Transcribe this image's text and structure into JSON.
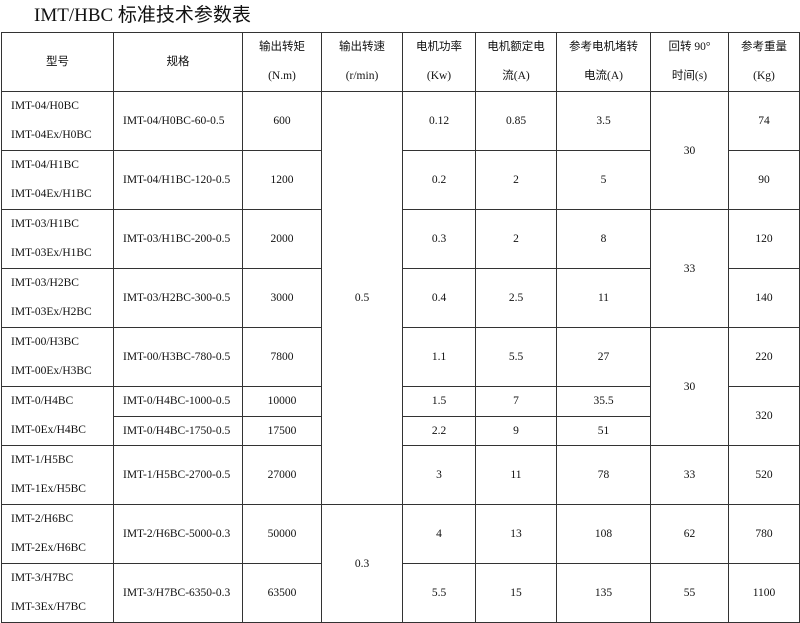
{
  "title": "IMT/HBC 标准技术参数表",
  "headers": {
    "model": "型号",
    "spec": "规格",
    "torque": [
      "输出转矩",
      "(N.m)"
    ],
    "speed": [
      "输出转速",
      "(r/min)"
    ],
    "power": [
      "电机功率",
      "(Kw)"
    ],
    "current": [
      "电机额定电",
      "流(A)"
    ],
    "stall": [
      "参考电机堵转",
      "电流(A)"
    ],
    "rotation": [
      "回转 90°",
      "时间(s)"
    ],
    "weight": [
      "参考重量",
      "(Kg)"
    ]
  },
  "models": [
    [
      "IMT-04/H0BC",
      "IMT-04Ex/H0BC"
    ],
    [
      "IMT-04/H1BC",
      "IMT-04Ex/H1BC"
    ],
    [
      "IMT-03/H1BC",
      "IMT-03Ex/H1BC"
    ],
    [
      "IMT-03/H2BC",
      "IMT-03Ex/H2BC"
    ],
    [
      "IMT-00/H3BC",
      "IMT-00Ex/H3BC"
    ],
    [
      "IMT-0/H4BC",
      "IMT-0Ex/H4BC"
    ],
    [
      "IMT-1/H5BC",
      "IMT-1Ex/H5BC"
    ],
    [
      "IMT-2/H6BC",
      "IMT-2Ex/H6BC"
    ],
    [
      "IMT-3/H7BC",
      "IMT-3Ex/H7BC"
    ]
  ],
  "model_row_spans": [
    1,
    1,
    1,
    1,
    1,
    2,
    1,
    1,
    1
  ],
  "rows": [
    {
      "spec": "IMT-04/H0BC-60-0.5",
      "torque": "600",
      "power": "0.12",
      "current": "0.85",
      "stall": "3.5"
    },
    {
      "spec": "IMT-04/H1BC-120-0.5",
      "torque": "1200",
      "power": "0.2",
      "current": "2",
      "stall": "5"
    },
    {
      "spec": "IMT-03/H1BC-200-0.5",
      "torque": "2000",
      "power": "0.3",
      "current": "2",
      "stall": "8"
    },
    {
      "spec": "IMT-03/H2BC-300-0.5",
      "torque": "3000",
      "power": "0.4",
      "current": "2.5",
      "stall": "11"
    },
    {
      "spec": "IMT-00/H3BC-780-0.5",
      "torque": "7800",
      "power": "1.1",
      "current": "5.5",
      "stall": "27"
    },
    {
      "spec": "IMT-0/H4BC-1000-0.5",
      "torque": "10000",
      "power": "1.5",
      "current": "7",
      "stall": "35.5"
    },
    {
      "spec": "IMT-0/H4BC-1750-0.5",
      "torque": "17500",
      "power": "2.2",
      "current": "9",
      "stall": "51"
    },
    {
      "spec": "IMT-1/H5BC-2700-0.5",
      "torque": "27000",
      "power": "3",
      "current": "11",
      "stall": "78"
    },
    {
      "spec": "IMT-2/H6BC-5000-0.3",
      "torque": "50000",
      "power": "4",
      "current": "13",
      "stall": "108"
    },
    {
      "spec": "IMT-3/H7BC-6350-0.3",
      "torque": "63500",
      "power": "5.5",
      "current": "15",
      "stall": "135"
    }
  ],
  "speed_groups": [
    {
      "value": "0.5",
      "rows": 8
    },
    {
      "value": "0.3",
      "rows": 2
    }
  ],
  "rotation_groups": [
    {
      "value": "30",
      "rows": 2
    },
    {
      "value": "33",
      "rows": 2
    },
    {
      "value": "30",
      "rows": 3
    },
    {
      "value": "33",
      "rows": 1
    },
    {
      "value": "62",
      "rows": 1
    },
    {
      "value": "55",
      "rows": 1
    }
  ],
  "weight_groups": [
    {
      "value": "74",
      "rows": 1
    },
    {
      "value": "90",
      "rows": 1
    },
    {
      "value": "120",
      "rows": 1
    },
    {
      "value": "140",
      "rows": 1
    },
    {
      "value": "220",
      "rows": 1
    },
    {
      "value": "320",
      "rows": 2
    },
    {
      "value": "520",
      "rows": 1
    },
    {
      "value": "780",
      "rows": 1
    },
    {
      "value": "1100",
      "rows": 1
    }
  ]
}
